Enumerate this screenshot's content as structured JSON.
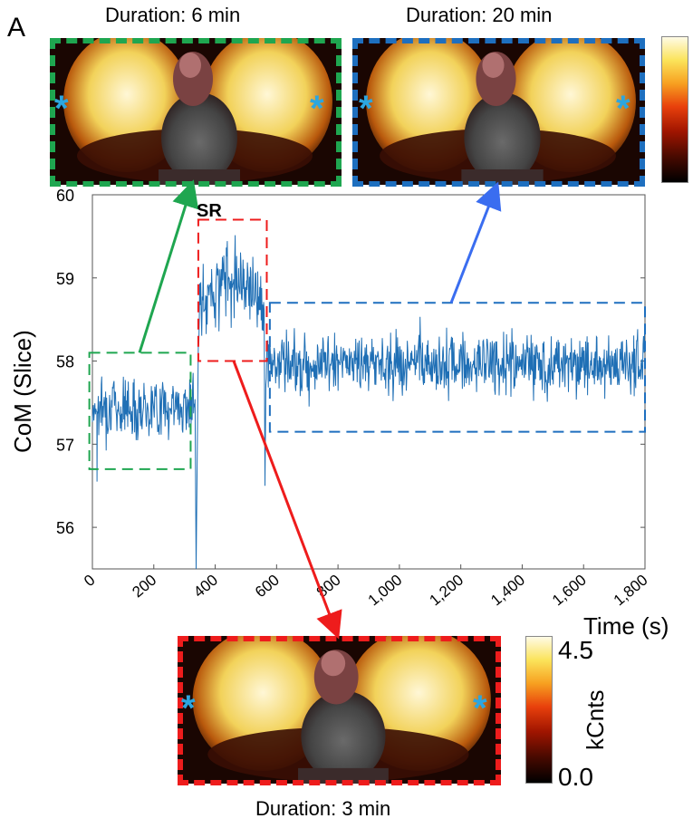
{
  "panel_label": "A",
  "insets": [
    {
      "id": "inset-6min",
      "caption": "Duration: 6 min",
      "color": "#1fa650",
      "star": "*"
    },
    {
      "id": "inset-20min",
      "caption": "Duration: 20 min",
      "color": "#1e6fbf",
      "star": "*"
    },
    {
      "id": "inset-3min",
      "caption": "Duration: 3 min",
      "color": "#ee1c1c",
      "star": "*"
    }
  ],
  "colorbar": {
    "max_label": "4.5",
    "min_label": "0.0",
    "unit": "kCnts",
    "colors": [
      "#000000",
      "#4a0a00",
      "#a01500",
      "#e8400c",
      "#f7a020",
      "#fbe35a",
      "#fffbe6"
    ]
  },
  "chart_data": {
    "type": "line",
    "xlabel": "Time (s)",
    "ylabel": "CoM (Slice)",
    "xlim": [
      0,
      1800
    ],
    "ylim": [
      55.5,
      60
    ],
    "xticks": [
      "0",
      "200",
      "400",
      "600",
      "800",
      "1,000",
      "1,200",
      "1,400",
      "1,600",
      "1,800"
    ],
    "xtick_values": [
      0,
      200,
      400,
      600,
      800,
      1000,
      1200,
      1400,
      1600,
      1800
    ],
    "yticks": [
      "56",
      "57",
      "58",
      "59",
      "60"
    ],
    "ytick_values": [
      56,
      57,
      58,
      59,
      60
    ],
    "line_color": "#1f6fb5",
    "segments": [
      {
        "x_start": 0,
        "x_end": 335,
        "mean": 57.45,
        "spread": 0.3
      },
      {
        "x_start": 345,
        "x_end": 560,
        "mean": 58.8,
        "spread": 0.35
      },
      {
        "x_start": 565,
        "x_end": 1800,
        "mean": 57.97,
        "spread": 0.3
      }
    ],
    "spikes": [
      {
        "x": 338,
        "y": 55.5
      },
      {
        "x": 562,
        "y": 56.5
      },
      {
        "x": 15,
        "y": 56.55
      }
    ],
    "annotation": "SR",
    "boxes": [
      {
        "name": "green-box",
        "x0": -10,
        "x1": 320,
        "y0": 56.7,
        "y1": 58.1,
        "color": "#1fa650"
      },
      {
        "name": "red-box",
        "x0": 345,
        "x1": 568,
        "y0": 58.0,
        "y1": 59.7,
        "color": "#ee1c1c"
      },
      {
        "name": "blue-box",
        "x0": 578,
        "x1": 1800,
        "y0": 57.15,
        "y1": 58.7,
        "color": "#1e6fbf"
      }
    ]
  }
}
